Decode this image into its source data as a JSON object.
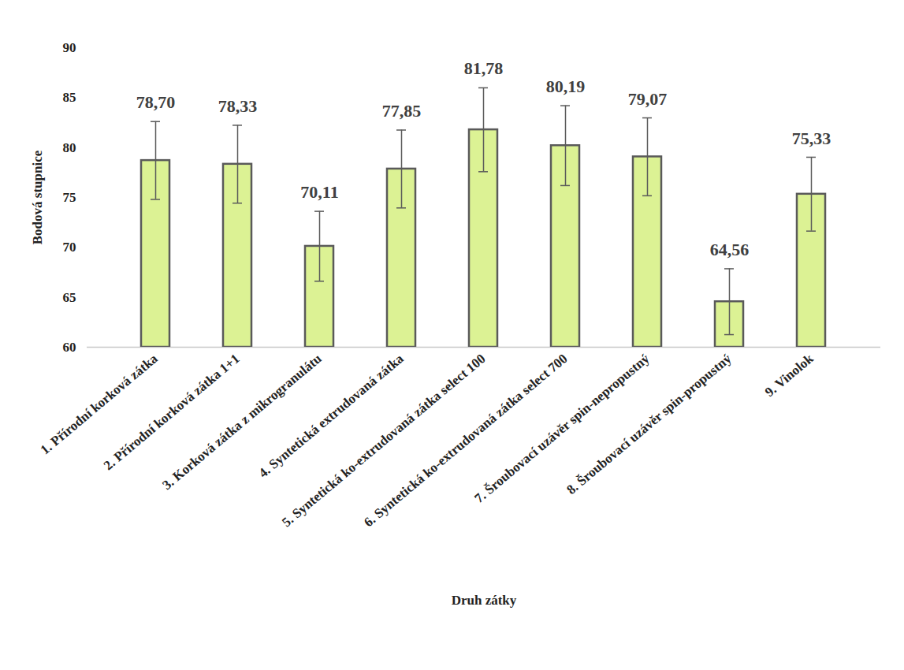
{
  "chart_data": {
    "type": "bar",
    "x_label": "Druh zátky",
    "y_label": "Bodová stupnice",
    "categories": [
      "1. Přírodní korková zátka",
      "2. Přírodní korková zátka 1+1",
      "3. Korková zátka z mikrogranulátu",
      "4. Syntetická extrudovaná zátka",
      "5. Syntetická ko-extrudovaná zátka select 100",
      "6. Syntetická ko-extrudovaná zátka select 700",
      "7. Šroubovací uzávěr spin-nepropustný",
      "8. Šroubovací uzávěr spin-propustný",
      "9. Vinolok"
    ],
    "values": [
      78.7,
      78.33,
      70.11,
      77.85,
      81.78,
      80.19,
      79.07,
      64.56,
      75.33
    ],
    "value_labels": [
      "78,70",
      "78,33",
      "70,11",
      "77,85",
      "81,78",
      "80,19",
      "79,07",
      "64,56",
      "75,33"
    ],
    "errors": [
      3.9,
      3.9,
      3.5,
      3.9,
      4.2,
      4.0,
      3.9,
      3.3,
      3.7
    ],
    "color": "#dcf294",
    "ylim": [
      60,
      90
    ],
    "yticks": [
      60,
      65,
      70,
      75,
      80,
      85,
      90
    ],
    "grid": false,
    "data_labels": true
  }
}
